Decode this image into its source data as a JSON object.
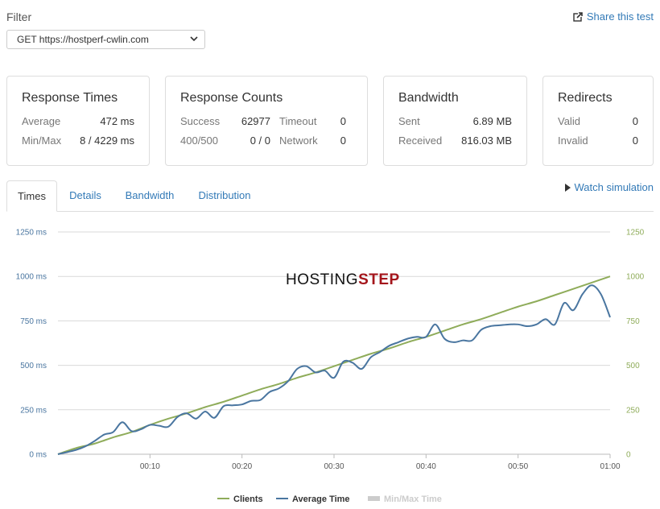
{
  "filter": {
    "label": "Filter",
    "selected": "GET https://hostperf-cwlin.com"
  },
  "share": {
    "label": "Share this test",
    "icon": "share-icon"
  },
  "cards": {
    "response_times": {
      "title": "Response Times",
      "rows": [
        {
          "label": "Average",
          "value": "472 ms"
        },
        {
          "label": "Min/Max",
          "value": "8 / 4229 ms"
        }
      ]
    },
    "response_counts": {
      "title": "Response Counts",
      "rows": [
        {
          "label": "Success",
          "value": "62977",
          "label2": "Timeout",
          "value2": "0"
        },
        {
          "label": "400/500",
          "value": "0 / 0",
          "label2": "Network",
          "value2": "0"
        }
      ]
    },
    "bandwidth": {
      "title": "Bandwidth",
      "rows": [
        {
          "label": "Sent",
          "value": "6.89 MB"
        },
        {
          "label": "Received",
          "value": "816.03 MB"
        }
      ]
    },
    "redirects": {
      "title": "Redirects",
      "rows": [
        {
          "label": "Valid",
          "value": "0"
        },
        {
          "label": "Invalid",
          "value": "0"
        }
      ]
    }
  },
  "tabs": [
    "Times",
    "Details",
    "Bandwidth",
    "Distribution"
  ],
  "active_tab": "Times",
  "watch_simulation": "Watch simulation",
  "watermark": {
    "part1": "HOSTING",
    "part2": "STEP"
  },
  "colors": {
    "clients": "#8fac5a",
    "average_time": "#4a76a0",
    "minmax": "#cccccc",
    "link": "#337ab7",
    "watermark_accent": "#a4151b"
  },
  "chart_data": {
    "type": "line",
    "x_ticks": [
      "00:10",
      "00:20",
      "00:30",
      "00:40",
      "00:50",
      "01:00"
    ],
    "y_left_ticks": [
      "0 ms",
      "250 ms",
      "500 ms",
      "750 ms",
      "1000 ms",
      "1250 ms"
    ],
    "y_right_ticks": [
      "0",
      "250",
      "500",
      "750",
      "1000",
      "1250"
    ],
    "ylim": [
      0,
      1250
    ],
    "xlim_seconds": [
      0,
      60
    ],
    "legend": [
      {
        "name": "Clients",
        "color": "#8fac5a"
      },
      {
        "name": "Average Time",
        "color": "#4a76a0"
      },
      {
        "name": "Min/Max Time",
        "color": "#cccccc",
        "disabled": true
      }
    ],
    "series": [
      {
        "name": "Clients",
        "axis": "right",
        "x": [
          0,
          2,
          4,
          6,
          8,
          10,
          12,
          14,
          16,
          18,
          20,
          22,
          24,
          26,
          28,
          30,
          32,
          34,
          36,
          38,
          40,
          42,
          44,
          46,
          48,
          50,
          52,
          54,
          56,
          58,
          60
        ],
        "values": [
          0,
          35,
          60,
          95,
          125,
          165,
          200,
          230,
          265,
          295,
          330,
          365,
          395,
          430,
          460,
          495,
          530,
          565,
          595,
          630,
          660,
          695,
          730,
          760,
          795,
          830,
          860,
          895,
          930,
          965,
          1000
        ]
      },
      {
        "name": "Average Time",
        "axis": "left",
        "x": [
          0,
          2,
          3,
          4,
          5,
          6,
          7,
          8,
          9,
          10,
          11,
          12,
          13,
          14,
          15,
          16,
          17,
          18,
          19,
          20,
          21,
          22,
          23,
          24,
          25,
          26,
          27,
          28,
          29,
          30,
          31,
          32,
          33,
          34,
          35,
          36,
          37,
          38,
          39,
          40,
          41,
          42,
          43,
          44,
          45,
          46,
          47,
          48,
          49,
          50,
          51,
          52,
          53,
          54,
          55,
          56,
          57,
          58,
          59,
          60
        ],
        "values": [
          0,
          25,
          45,
          75,
          110,
          125,
          180,
          130,
          140,
          165,
          160,
          155,
          210,
          230,
          200,
          240,
          205,
          270,
          275,
          280,
          300,
          305,
          350,
          370,
          410,
          480,
          495,
          460,
          470,
          430,
          520,
          515,
          480,
          545,
          575,
          610,
          630,
          650,
          660,
          660,
          730,
          650,
          630,
          640,
          640,
          700,
          720,
          725,
          730,
          730,
          720,
          730,
          760,
          730,
          850,
          810,
          900,
          950,
          900,
          770
        ]
      }
    ]
  }
}
